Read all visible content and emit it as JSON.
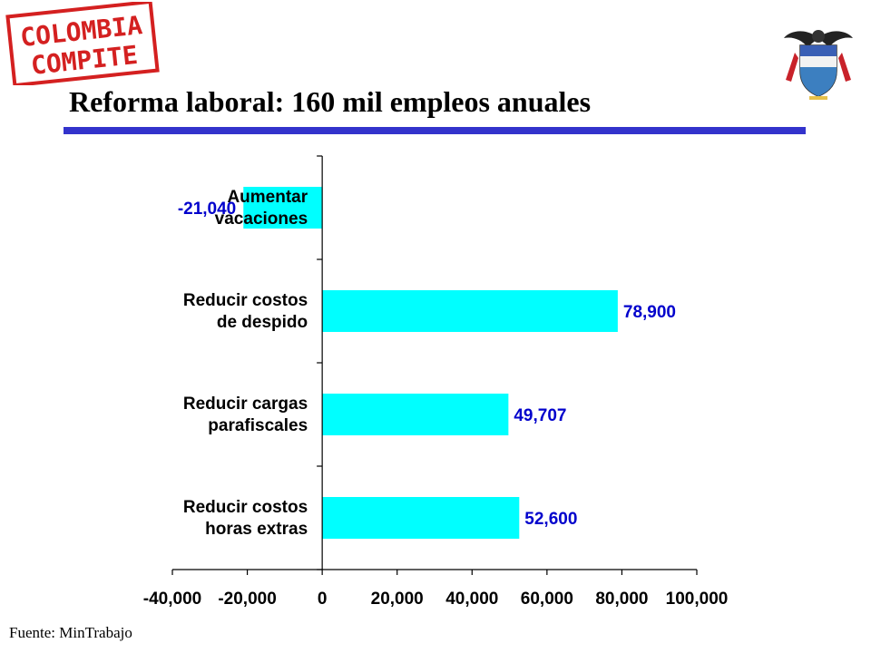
{
  "slide": {
    "title": "Reforma laboral: 160 mil empleos anuales",
    "logo_line1": "COLOMBIA",
    "logo_line2": "COMPITE",
    "source": "Fuente: MinTrabajo"
  },
  "colors": {
    "bar": "#00FFFF",
    "value_label": "#0000CC",
    "title_rule": "#3333CC",
    "logo_red": "#D42020"
  },
  "icons": {
    "logo": "colombia-compite-stamp",
    "crest": "colombia-coat-of-arms"
  },
  "chart_data": {
    "type": "bar",
    "orientation": "horizontal",
    "categories": [
      [
        "Aumentar",
        "vacaciones"
      ],
      [
        "Reducir costos",
        "de despido"
      ],
      [
        "Reducir cargas",
        "parafiscales"
      ],
      [
        "Reducir costos",
        "horas extras"
      ]
    ],
    "values": [
      -21040,
      78900,
      49707,
      52600
    ],
    "value_labels": [
      "-21,040",
      "78,900",
      "49,707",
      "52,600"
    ],
    "xlim": [
      -40000,
      100000
    ],
    "xticks": [
      -40000,
      -20000,
      0,
      20000,
      40000,
      60000,
      80000,
      100000
    ],
    "xtick_labels": [
      "-40,000",
      "-20,000",
      "0",
      "20,000",
      "40,000",
      "60,000",
      "80,000",
      "100,000"
    ],
    "grid": false,
    "legend": false
  }
}
